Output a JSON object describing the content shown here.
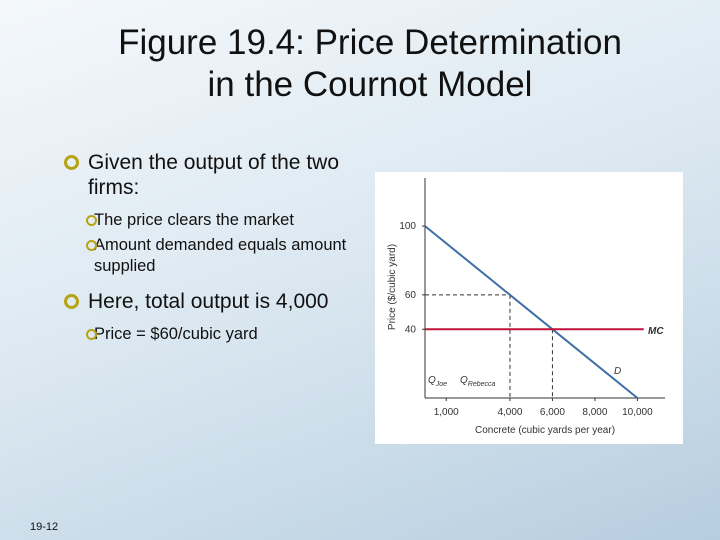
{
  "slide": {
    "title_lines": [
      "Figure 19.4: Price Determination",
      "in the Cournot Model"
    ],
    "bullets": [
      {
        "text": "Given the output of the two firms:",
        "sub": [
          "The price clears the market",
          "Amount demanded equals amount supplied"
        ]
      },
      {
        "text": "Here, total output is 4,000",
        "sub": [
          "Price = $60/cubic yard"
        ]
      }
    ],
    "number": "19-12"
  },
  "chart_data": {
    "type": "line",
    "x_label": "Concrete (cubic yards per year)",
    "y_label": "Price ($/cubic yard)",
    "xlim": [
      0,
      11300
    ],
    "ylim": [
      0,
      128
    ],
    "xticks": [
      {
        "value": 1000,
        "label": "1,000"
      },
      {
        "value": 4000,
        "label": "4,000"
      },
      {
        "value": 6000,
        "label": "6,000"
      },
      {
        "value": 8000,
        "label": "8,000"
      },
      {
        "value": 10000,
        "label": "10,000"
      }
    ],
    "yticks": [
      40,
      60,
      100
    ],
    "series": [
      {
        "name": "D",
        "color": "#3d6fa6",
        "x": [
          0,
          10000
        ],
        "values": [
          100,
          0
        ]
      },
      {
        "name": "MC",
        "color": "#c0143c",
        "x": [
          0,
          10300
        ],
        "values": [
          40,
          40
        ]
      }
    ],
    "guides": [
      {
        "x": 4000,
        "y": 60
      },
      {
        "x": 6000,
        "y": 40
      }
    ],
    "annotations": [
      {
        "text": "Q",
        "sub": "Joe"
      },
      {
        "text": "Q",
        "sub": "Rebecca"
      }
    ]
  }
}
